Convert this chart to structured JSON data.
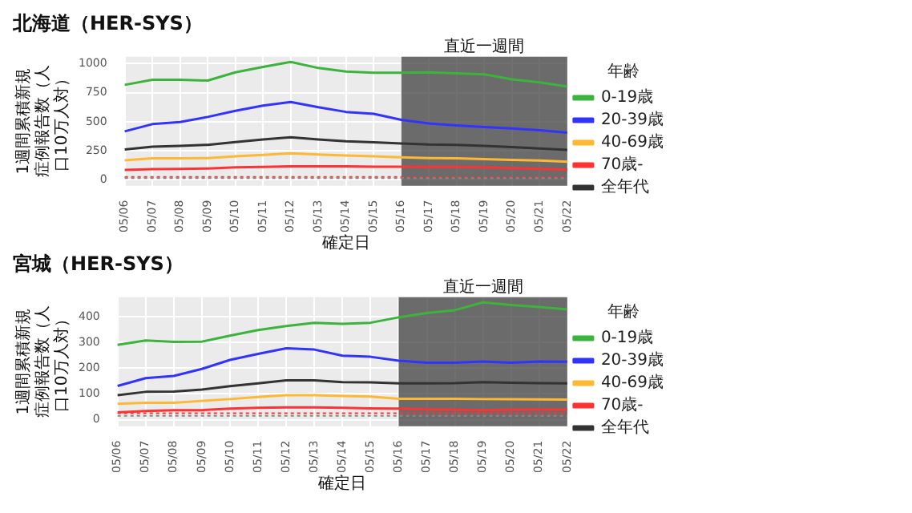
{
  "chart_data": [
    {
      "type": "line",
      "title": "北海道（HER-SYS）",
      "xlabel": "確定日",
      "ylabel": "1週間累積新規症例報告数（人口10万人対）",
      "legend_title": "年齢",
      "legend": "right",
      "grid": true,
      "marker": "none",
      "line_style": "solid",
      "categories": [
        "05/06",
        "05/07",
        "05/08",
        "05/09",
        "05/10",
        "05/11",
        "05/12",
        "05/13",
        "05/14",
        "05/15",
        "05/16",
        "05/17",
        "05/18",
        "05/19",
        "05/20",
        "05/21",
        "05/22"
      ],
      "ylim": [
        -50,
        1060
      ],
      "yticks": [
        0,
        250,
        500,
        750,
        1000
      ],
      "series": [
        {
          "name": "0-19歳",
          "color": "#3cb33c",
          "values": [
            818,
            862,
            862,
            855,
            926,
            972,
            1015,
            963,
            932,
            923,
            923,
            926,
            917,
            908,
            865,
            840,
            803
          ]
        },
        {
          "name": "20-39歳",
          "color": "#3333ff",
          "values": [
            418,
            480,
            498,
            542,
            594,
            640,
            671,
            625,
            585,
            569,
            517,
            486,
            468,
            455,
            443,
            428,
            406
          ]
        },
        {
          "name": "40-69歳",
          "color": "#ffb833",
          "values": [
            169,
            185,
            185,
            188,
            203,
            215,
            228,
            218,
            209,
            203,
            194,
            188,
            185,
            178,
            172,
            166,
            157
          ]
        },
        {
          "name": "70歳-",
          "color": "#ff3333",
          "values": [
            86,
            92,
            95,
            98,
            108,
            111,
            117,
            117,
            117,
            114,
            114,
            111,
            111,
            108,
            102,
            95,
            89
          ]
        },
        {
          "name": "全年代",
          "color": "#333333",
          "values": [
            262,
            286,
            292,
            302,
            326,
            348,
            366,
            348,
            332,
            323,
            314,
            305,
            302,
            292,
            283,
            271,
            258
          ]
        }
      ],
      "ref_lines": [
        {
          "axis": "y",
          "value": 25,
          "color": "#ff3333",
          "line_style": "dotted"
        },
        {
          "axis": "y",
          "value": 15,
          "color": "#888888",
          "line_style": "dotted"
        }
      ],
      "bands": [
        {
          "axis": "x",
          "from": "05/16",
          "to": "05/22",
          "label": "直近一週間",
          "color": "#404040"
        }
      ]
    },
    {
      "type": "line",
      "title": "宮城（HER-SYS）",
      "xlabel": "確定日",
      "ylabel": "1週間累積新規症例報告数（人口10万人対）",
      "legend_title": "年齢",
      "legend": "right",
      "grid": true,
      "marker": "none",
      "line_style": "solid",
      "categories": [
        "05/06",
        "05/07",
        "05/08",
        "05/09",
        "05/10",
        "05/11",
        "05/12",
        "05/13",
        "05/14",
        "05/15",
        "05/16",
        "05/17",
        "05/18",
        "05/19",
        "05/20",
        "05/21",
        "05/22"
      ],
      "ylim": [
        -25,
        475
      ],
      "yticks": [
        0,
        100,
        200,
        300,
        400
      ],
      "series": [
        {
          "name": "0-19歳",
          "color": "#3cb33c",
          "values": [
            290,
            307,
            302,
            303,
            326,
            348,
            363,
            376,
            372,
            376,
            397,
            414,
            425,
            455,
            445,
            437,
            428
          ]
        },
        {
          "name": "20-39歳",
          "color": "#3333ff",
          "values": [
            131,
            161,
            170,
            197,
            232,
            255,
            277,
            272,
            248,
            244,
            229,
            221,
            221,
            226,
            221,
            226,
            225
          ]
        },
        {
          "name": "40-69歳",
          "color": "#ffb833",
          "values": [
            62,
            66,
            66,
            73,
            80,
            88,
            95,
            95,
            92,
            90,
            81,
            81,
            81,
            80,
            80,
            79,
            78
          ]
        },
        {
          "name": "70歳-",
          "color": "#ff3333",
          "values": [
            28,
            34,
            37,
            37,
            43,
            46,
            48,
            48,
            46,
            44,
            43,
            40,
            39,
            37,
            39,
            40,
            39
          ]
        },
        {
          "name": "全年代",
          "color": "#333333",
          "values": [
            95,
            108,
            109,
            117,
            130,
            141,
            153,
            153,
            146,
            145,
            141,
            141,
            142,
            146,
            143,
            142,
            141
          ]
        }
      ],
      "ref_lines": [
        {
          "axis": "y",
          "value": 25,
          "color": "#ff3333",
          "line_style": "dotted"
        },
        {
          "axis": "y",
          "value": 15,
          "color": "#888888",
          "line_style": "dotted"
        }
      ],
      "bands": [
        {
          "axis": "x",
          "from": "05/16",
          "to": "05/22",
          "label": "直近一週間",
          "color": "#404040"
        }
      ]
    }
  ]
}
